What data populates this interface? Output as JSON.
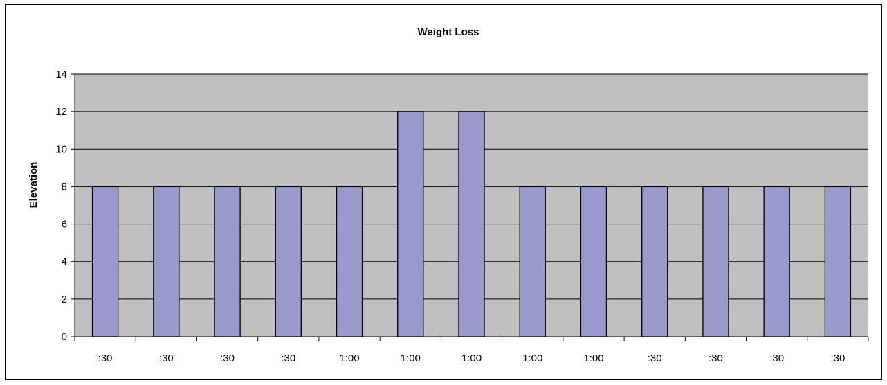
{
  "chart_data": {
    "type": "bar",
    "title": "Weight Loss",
    "xlabel": "",
    "ylabel": "Elevation",
    "categories": [
      ":30",
      ":30",
      ":30",
      ":30",
      "1:00",
      "1:00",
      "1:00",
      "1:00",
      "1:00",
      ":30",
      ":30",
      ":30",
      ":30"
    ],
    "values": [
      8,
      8,
      8,
      8,
      8,
      12,
      12,
      8,
      8,
      8,
      8,
      8,
      8
    ],
    "ylim": [
      0,
      14
    ],
    "yticks": [
      0,
      2,
      4,
      6,
      8,
      10,
      12,
      14
    ],
    "grid": true,
    "legend": "none",
    "colors": {
      "bar_fill": "#9999cc",
      "bar_stroke": "#000000",
      "plot_background": "#c0c0c0",
      "gridline": "#000000"
    }
  }
}
